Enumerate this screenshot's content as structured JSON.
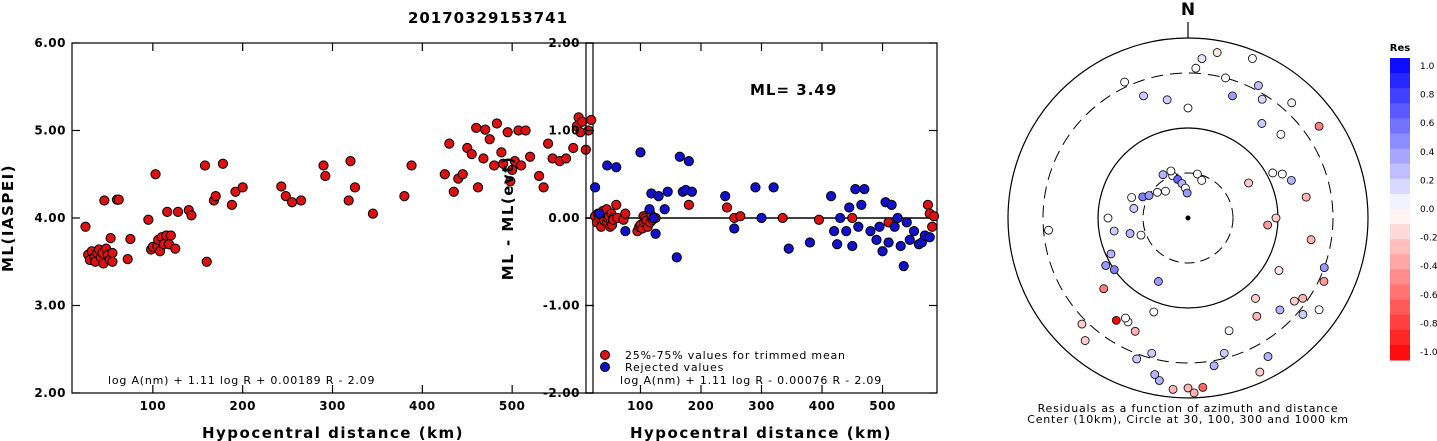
{
  "figure_title": "20170329153741",
  "chart_data": [
    {
      "type": "scatter",
      "xlabel": "Hypocentral distance (km)",
      "ylabel": "ML(IASPEI)",
      "xlim": [
        10,
        590
      ],
      "ylim": [
        2.0,
        6.0
      ],
      "xticks": [
        "100",
        "200",
        "300",
        "400",
        "500"
      ],
      "yticks": [
        "2.00",
        "3.00",
        "4.00",
        "5.00",
        "6.00"
      ],
      "annotation": "log A(nm) + 1.11 log R + 0.00189 R - 2.09",
      "series": [
        {
          "color": "#dd1111",
          "points": [
            [
              25,
              3.9
            ],
            [
              28,
              3.58
            ],
            [
              30,
              3.52
            ],
            [
              32,
              3.62
            ],
            [
              35,
              3.55
            ],
            [
              36,
              3.5
            ],
            [
              38,
              3.6
            ],
            [
              40,
              3.64
            ],
            [
              42,
              3.55
            ],
            [
              44,
              3.6
            ],
            [
              45,
              3.48
            ],
            [
              46,
              4.2
            ],
            [
              48,
              3.65
            ],
            [
              50,
              3.58
            ],
            [
              52,
              3.52
            ],
            [
              53,
              3.77
            ],
            [
              55,
              3.5
            ],
            [
              55,
              3.6
            ],
            [
              60,
              4.21
            ],
            [
              62,
              4.21
            ],
            [
              72,
              3.53
            ],
            [
              75,
              3.76
            ],
            [
              95,
              3.98
            ],
            [
              98,
              3.64
            ],
            [
              100,
              3.67
            ],
            [
              103,
              4.5
            ],
            [
              105,
              3.68
            ],
            [
              106,
              3.75
            ],
            [
              108,
              3.62
            ],
            [
              110,
              3.78
            ],
            [
              112,
              3.7
            ],
            [
              115,
              3.8
            ],
            [
              116,
              4.07
            ],
            [
              118,
              3.7
            ],
            [
              120,
              3.8
            ],
            [
              125,
              3.65
            ],
            [
              128,
              4.07
            ],
            [
              140,
              4.09
            ],
            [
              143,
              4.03
            ],
            [
              158,
              4.6
            ],
            [
              160,
              3.5
            ],
            [
              168,
              4.2
            ],
            [
              170,
              4.25
            ],
            [
              178,
              4.62
            ],
            [
              188,
              4.15
            ],
            [
              192,
              4.3
            ],
            [
              200,
              4.35
            ],
            [
              243,
              4.36
            ],
            [
              248,
              4.25
            ],
            [
              255,
              4.18
            ],
            [
              265,
              4.2
            ],
            [
              290,
              4.6
            ],
            [
              292,
              4.48
            ],
            [
              318,
              4.2
            ],
            [
              320,
              4.65
            ],
            [
              325,
              4.35
            ],
            [
              345,
              4.05
            ],
            [
              380,
              4.25
            ],
            [
              388,
              4.6
            ],
            [
              425,
              4.5
            ],
            [
              430,
              4.85
            ],
            [
              435,
              4.3
            ],
            [
              440,
              4.45
            ],
            [
              445,
              4.5
            ],
            [
              450,
              4.8
            ],
            [
              455,
              4.73
            ],
            [
              460,
              5.03
            ],
            [
              462,
              4.35
            ],
            [
              468,
              4.68
            ],
            [
              470,
              5.01
            ],
            [
              475,
              4.9
            ],
            [
              480,
              4.6
            ],
            [
              483,
              5.08
            ],
            [
              488,
              4.75
            ],
            [
              490,
              4.62
            ],
            [
              495,
              4.98
            ],
            [
              498,
              4.42
            ],
            [
              500,
              4.55
            ],
            [
              503,
              4.65
            ],
            [
              507,
              5.0
            ],
            [
              510,
              4.6
            ],
            [
              515,
              5.0
            ],
            [
              520,
              4.7
            ],
            [
              530,
              4.48
            ],
            [
              535,
              4.35
            ],
            [
              540,
              4.85
            ],
            [
              545,
              4.68
            ],
            [
              553,
              4.65
            ],
            [
              560,
              4.68
            ],
            [
              568,
              4.8
            ],
            [
              572,
              5.05
            ],
            [
              574,
              5.15
            ],
            [
              576,
              4.98
            ],
            [
              578,
              5.1
            ],
            [
              582,
              4.78
            ],
            [
              585,
              5.0
            ],
            [
              588,
              5.12
            ]
          ]
        }
      ]
    },
    {
      "type": "scatter",
      "xlabel": "Hypocentral distance (km)",
      "ylabel": "ML - ML(evt)",
      "xlim": [
        10,
        590
      ],
      "ylim": [
        -2.0,
        2.0
      ],
      "xticks": [
        "100",
        "200",
        "300",
        "400",
        "500"
      ],
      "yticks": [
        "-2.00",
        "-1.00",
        "0.00",
        "1.00",
        "2.00"
      ],
      "reference_line": 0.0,
      "ml_label": "ML= 3.49",
      "annotation": "log A(nm) + 1.11 log R - 0.00076 R - 2.09",
      "legend": [
        "25%-75% values for trimmed mean",
        "Rejected values"
      ],
      "legend_position": "bottom-left",
      "series": [
        {
          "name": "25%-75% values for trimmed mean",
          "color": "#dd1111",
          "points": [
            [
              25,
              0.02
            ],
            [
              28,
              -0.05
            ],
            [
              30,
              0.05
            ],
            [
              32,
              0.0
            ],
            [
              35,
              -0.1
            ],
            [
              36,
              0.02
            ],
            [
              38,
              0.08
            ],
            [
              40,
              -0.03
            ],
            [
              42,
              0.05
            ],
            [
              44,
              0.1
            ],
            [
              45,
              -0.05
            ],
            [
              46,
              0.0
            ],
            [
              48,
              0.02
            ],
            [
              50,
              -0.1
            ],
            [
              52,
              0.05
            ],
            [
              53,
              -0.08
            ],
            [
              55,
              0.0
            ],
            [
              55,
              -0.02
            ],
            [
              60,
              0.15
            ],
            [
              62,
              0.0
            ],
            [
              72,
              -0.02
            ],
            [
              75,
              0.05
            ],
            [
              95,
              -0.15
            ],
            [
              98,
              -0.1
            ],
            [
              100,
              -0.08
            ],
            [
              103,
              -0.12
            ],
            [
              105,
              0.02
            ],
            [
              106,
              -0.05
            ],
            [
              108,
              0.0
            ],
            [
              110,
              -0.03
            ],
            [
              112,
              -0.1
            ],
            [
              115,
              0.08
            ],
            [
              116,
              -0.05
            ],
            [
              118,
              0.03
            ],
            [
              120,
              -0.02
            ],
            [
              125,
              0.0
            ],
            [
              180,
              0.15
            ],
            [
              243,
              0.12
            ],
            [
              255,
              0.0
            ],
            [
              265,
              0.02
            ],
            [
              335,
              0.0
            ],
            [
              395,
              -0.02
            ],
            [
              450,
              0.0
            ],
            [
              510,
              -0.05
            ],
            [
              575,
              0.15
            ],
            [
              578,
              0.05
            ],
            [
              582,
              -0.1
            ],
            [
              585,
              0.02
            ]
          ]
        },
        {
          "name": "Rejected values",
          "color": "#1111cc",
          "points": [
            [
              25,
              0.35
            ],
            [
              32,
              0.05
            ],
            [
              45,
              0.6
            ],
            [
              60,
              0.58
            ],
            [
              75,
              -0.15
            ],
            [
              100,
              0.75
            ],
            [
              115,
              0.1
            ],
            [
              118,
              0.28
            ],
            [
              122,
              0.0
            ],
            [
              125,
              -0.18
            ],
            [
              130,
              0.25
            ],
            [
              140,
              0.1
            ],
            [
              145,
              0.3
            ],
            [
              160,
              -0.45
            ],
            [
              165,
              0.7
            ],
            [
              170,
              0.3
            ],
            [
              175,
              0.32
            ],
            [
              180,
              0.65
            ],
            [
              185,
              0.3
            ],
            [
              240,
              0.25
            ],
            [
              255,
              -0.12
            ],
            [
              290,
              0.35
            ],
            [
              300,
              0.0
            ],
            [
              320,
              0.35
            ],
            [
              345,
              -0.35
            ],
            [
              380,
              -0.28
            ],
            [
              415,
              0.25
            ],
            [
              420,
              -0.15
            ],
            [
              425,
              -0.3
            ],
            [
              430,
              0.0
            ],
            [
              440,
              -0.15
            ],
            [
              445,
              0.12
            ],
            [
              450,
              -0.32
            ],
            [
              455,
              0.33
            ],
            [
              460,
              -0.1
            ],
            [
              465,
              0.15
            ],
            [
              470,
              0.33
            ],
            [
              480,
              -0.15
            ],
            [
              490,
              -0.25
            ],
            [
              495,
              -0.1
            ],
            [
              500,
              -0.38
            ],
            [
              505,
              0.18
            ],
            [
              510,
              -0.28
            ],
            [
              515,
              0.15
            ],
            [
              520,
              -0.1
            ],
            [
              525,
              0.0
            ],
            [
              530,
              -0.32
            ],
            [
              535,
              -0.55
            ],
            [
              540,
              -0.05
            ],
            [
              545,
              -0.25
            ],
            [
              552,
              -0.15
            ],
            [
              560,
              -0.3
            ],
            [
              565,
              -0.28
            ],
            [
              570,
              -0.2
            ],
            [
              578,
              -0.22
            ]
          ]
        }
      ]
    },
    {
      "type": "scatter",
      "north_label": "N",
      "caption_line1": "Residuals as a function of azimuth and distance",
      "caption_line2": "Center (10km), Circle at 30, 100, 300 and 1000 km",
      "colorbar_title": "Res",
      "colorbar_ticks": [
        "1.0",
        "0.8",
        "0.6",
        "0.4",
        "0.2",
        "0.0",
        "-0.2",
        "-0.4",
        "-0.6",
        "-0.8",
        "-1.0"
      ],
      "points_azimuth_residual": [
        [
          3,
          0.0
        ],
        [
          10,
          -0.1
        ],
        [
          22,
          0.0
        ],
        [
          28,
          0.25
        ],
        [
          32,
          0.15
        ],
        [
          38,
          0.2
        ],
        [
          42,
          0.05
        ],
        [
          55,
          -0.5
        ],
        [
          60,
          -0.2
        ],
        [
          62,
          0.0
        ],
        [
          65,
          0.0
        ],
        [
          80,
          -0.3
        ],
        [
          90,
          -0.2
        ],
        [
          100,
          -0.3
        ],
        [
          110,
          0.4
        ],
        [
          115,
          -0.4
        ],
        [
          120,
          -0.1
        ],
        [
          125,
          -0.3
        ],
        [
          125,
          0.0
        ],
        [
          128,
          -0.2
        ],
        [
          130,
          0.2
        ],
        [
          135,
          0.3
        ],
        [
          140,
          -0.2
        ],
        [
          145,
          -0.3
        ],
        [
          150,
          0.3
        ],
        [
          155,
          -0.2
        ],
        [
          160,
          0.0
        ],
        [
          165,
          0.2
        ],
        [
          170,
          0.3
        ],
        [
          175,
          -0.6
        ],
        [
          178,
          -0.3
        ],
        [
          180,
          -0.3
        ],
        [
          185,
          -0.3
        ],
        [
          190,
          0.3
        ],
        [
          192,
          0.3
        ],
        [
          195,
          0.2
        ],
        [
          200,
          0.2
        ],
        [
          205,
          -0.3
        ],
        [
          210,
          0.0
        ],
        [
          212,
          0.0
        ],
        [
          215,
          -1.0
        ],
        [
          220,
          -0.2
        ],
        [
          225,
          -0.2
        ],
        [
          230,
          -0.5
        ],
        [
          235,
          0.5
        ],
        [
          240,
          0.4
        ],
        [
          245,
          0.3
        ],
        [
          250,
          0.0
        ],
        [
          255,
          0.3
        ],
        [
          260,
          0.2
        ],
        [
          270,
          0.0
        ],
        [
          280,
          0.2
        ],
        [
          290,
          0.0
        ],
        [
          295,
          0.5
        ],
        [
          300,
          0.4
        ],
        [
          310,
          0.0
        ],
        [
          320,
          0.0
        ],
        [
          330,
          0.3
        ],
        [
          340,
          0.0
        ],
        [
          345,
          0.6
        ],
        [
          350,
          0.3
        ],
        [
          355,
          0.0
        ],
        [
          358,
          0.4
        ],
        [
          5,
          0.1
        ],
        [
          15,
          0.0
        ],
        [
          20,
          0.4
        ],
        [
          48,
          0.0
        ],
        [
          70,
          0.3
        ],
        [
          95,
          -0.4
        ],
        [
          200,
          0.0
        ],
        [
          205,
          0.4
        ],
        [
          265,
          0.0
        ],
        [
          335,
          0.0
        ],
        [
          340,
          0.2
        ],
        [
          350,
          0.2
        ],
        [
          0,
          0.0
        ],
        [
          12,
          0.0
        ],
        [
          20,
          0.0
        ],
        [
          340,
          0.0
        ]
      ]
    }
  ]
}
